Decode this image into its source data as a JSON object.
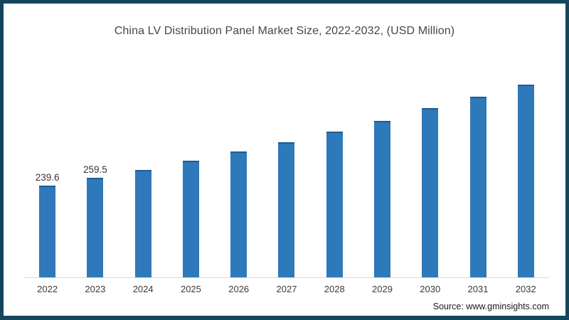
{
  "chart_data": {
    "type": "bar",
    "title": "China LV Distribution Panel Market Size, 2022-2032, (USD Million)",
    "ylabel": "USD Million",
    "categories": [
      "2022",
      "2023",
      "2024",
      "2025",
      "2026",
      "2027",
      "2028",
      "2029",
      "2030",
      "2031",
      "2032"
    ],
    "values": [
      239.6,
      259.5,
      281.3,
      305.4,
      329.7,
      353.9,
      381.9,
      409.8,
      441.5,
      471.3,
      502.9
    ],
    "data_labels": [
      "239.6",
      "259.5",
      "",
      "",
      "",
      "",
      "",
      "",
      "",
      "",
      ""
    ],
    "ylim": [
      0,
      520
    ],
    "grid": false,
    "legend": "none",
    "bar_color": "#2e79b9"
  },
  "source": {
    "label": "Source: www.gminsights.com"
  },
  "colors": {
    "bar": "#2e79b9",
    "bar_top_edge": "#1e5d92",
    "frame_border": "#16455e",
    "axis_line": "#d9d9d9",
    "title_text": "#474747",
    "tick_text": "#3b3b3b",
    "label_text": "#373737",
    "source_text": "#1a1a1a",
    "background": "#ffffff"
  }
}
